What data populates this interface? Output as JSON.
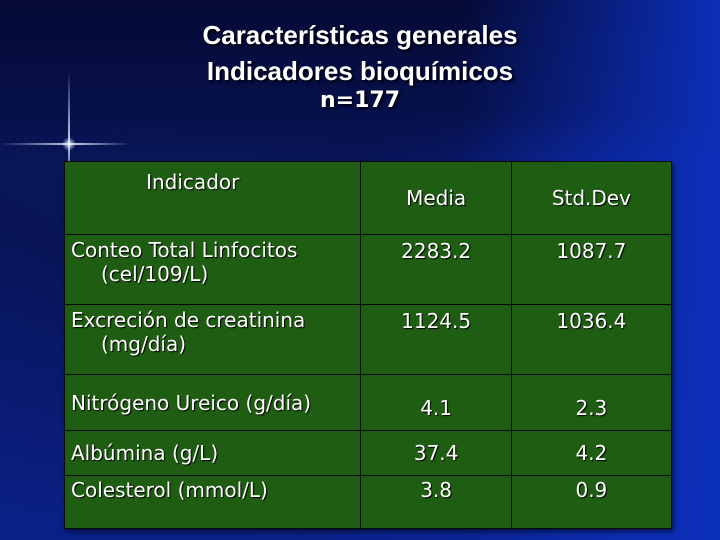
{
  "title": {
    "line1": "Características generales",
    "line2": "Indicadores bioquímicos",
    "line3": "n=177"
  },
  "table": {
    "headers": [
      "Indicador",
      "Media",
      "Std.Dev"
    ],
    "rows": [
      {
        "indicator": "Conteo Total Linfocitos",
        "unit": "(cel/109/L)",
        "media": "2283.2",
        "std": "1087.7"
      },
      {
        "indicator": "Excreción de creatinina",
        "unit": "(mg/día)",
        "media": "1124.5",
        "std": "1036.4"
      },
      {
        "indicator": "Nitrógeno Ureico (g/día)",
        "unit": "",
        "media": "4.1",
        "std": "2.3"
      },
      {
        "indicator": "Albúmina (g/L)",
        "unit": "",
        "media": "37.4",
        "std": "4.2"
      },
      {
        "indicator": "Colesterol (mmol/L)",
        "unit": "",
        "media": "3.8",
        "std": "0.9"
      }
    ]
  },
  "colors": {
    "background": "#081456",
    "table_fill": "#1f5e12",
    "text": "#ffffff"
  }
}
